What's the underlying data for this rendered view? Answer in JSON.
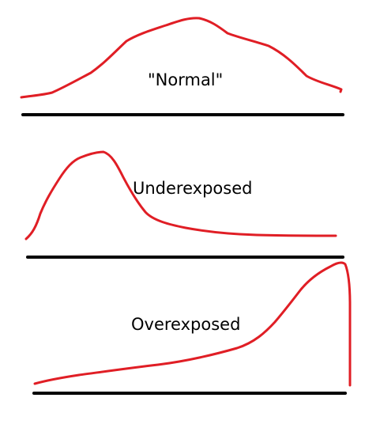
{
  "colors": {
    "curve": "#e01e25",
    "axis": "#000000",
    "background": "#ffffff"
  },
  "panels": [
    {
      "id": "normal",
      "label": "\"Normal\"",
      "shape": "symmetric bell-shaped histogram"
    },
    {
      "id": "underexposed",
      "label": "Underexposed",
      "shape": "histogram skewed left with peak near dark end"
    },
    {
      "id": "overexposed",
      "label": "Overexposed",
      "shape": "histogram skewed right with peak near bright end"
    }
  ]
}
